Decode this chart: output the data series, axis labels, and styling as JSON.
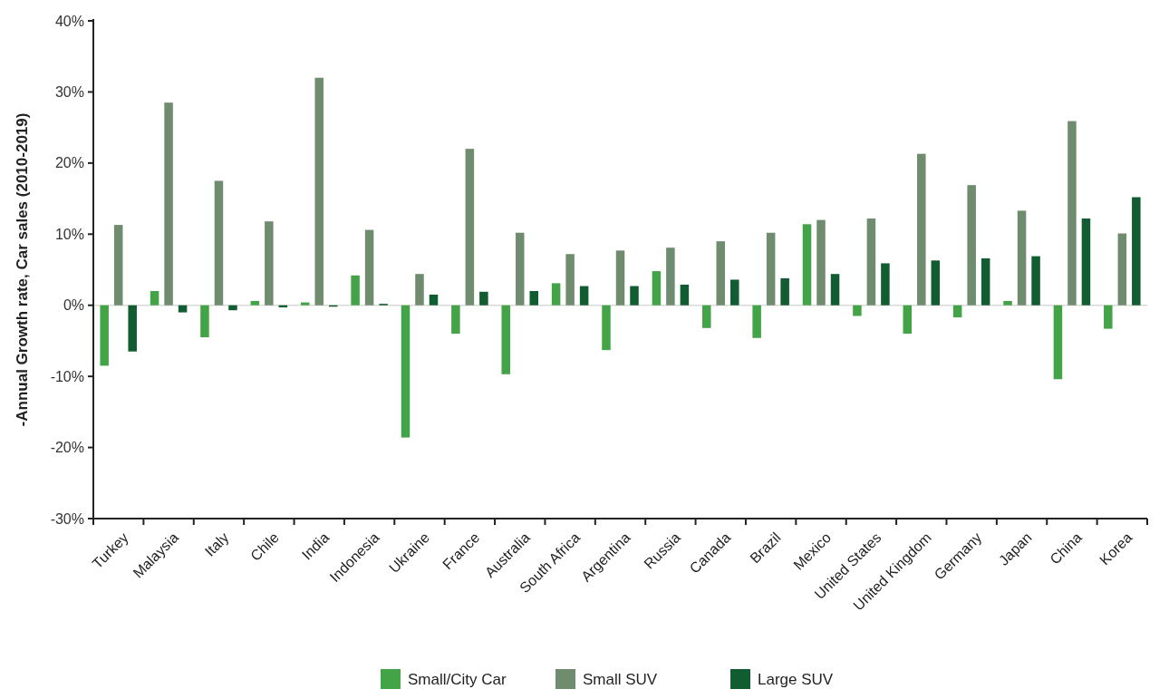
{
  "chart_data": {
    "type": "bar",
    "ylabel": "-Annual Growth rate, Car sales (2010-2019)",
    "categories": [
      "Turkey",
      "Malaysia",
      "Italy",
      "Chile",
      "India",
      "Indonesia",
      "Ukraine",
      "France",
      "Australia",
      "South Africa",
      "Argentina",
      "Russia",
      "Canada",
      "Brazil",
      "Mexico",
      "United States",
      "United Kingdom",
      "Germany",
      "Japan",
      "China",
      "Korea"
    ],
    "series": [
      {
        "name": "Small/City Car",
        "color": "#43a447",
        "values": [
          -8.5,
          2.0,
          -4.5,
          0.6,
          0.4,
          4.2,
          -18.6,
          -4.0,
          -9.7,
          3.1,
          -6.3,
          4.8,
          -3.2,
          -4.6,
          11.4,
          -1.5,
          -4.0,
          -1.7,
          0.6,
          -10.4,
          -3.3
        ]
      },
      {
        "name": "Small SUV",
        "color": "#6f8c6f",
        "values": [
          11.3,
          28.5,
          17.5,
          11.8,
          32.0,
          10.6,
          4.4,
          22.0,
          10.2,
          7.2,
          7.7,
          8.1,
          9.0,
          10.2,
          12.0,
          12.2,
          21.3,
          16.9,
          13.3,
          25.9,
          10.1
        ]
      },
      {
        "name": "Large SUV",
        "color": "#115c30",
        "values": [
          -6.5,
          -1.0,
          -0.7,
          -0.3,
          -0.2,
          0.2,
          1.5,
          1.9,
          2.0,
          2.7,
          2.7,
          2.9,
          3.6,
          3.8,
          4.4,
          5.9,
          6.3,
          6.6,
          6.9,
          12.2,
          15.2
        ]
      }
    ],
    "ylim": [
      -30,
      40
    ],
    "yticks": [
      {
        "value": -30,
        "label": "-30%"
      },
      {
        "value": -20,
        "label": "-20%"
      },
      {
        "value": -10,
        "label": "-10%"
      },
      {
        "value": 0,
        "label": "0%"
      },
      {
        "value": 10,
        "label": "10%"
      },
      {
        "value": 20,
        "label": "20%"
      },
      {
        "value": 30,
        "label": "30%"
      },
      {
        "value": 40,
        "label": "40%"
      }
    ],
    "ref_lines": [
      {
        "axis": "y",
        "value": 0,
        "color": "#d9d9d9"
      }
    ],
    "legend": "bottom"
  }
}
